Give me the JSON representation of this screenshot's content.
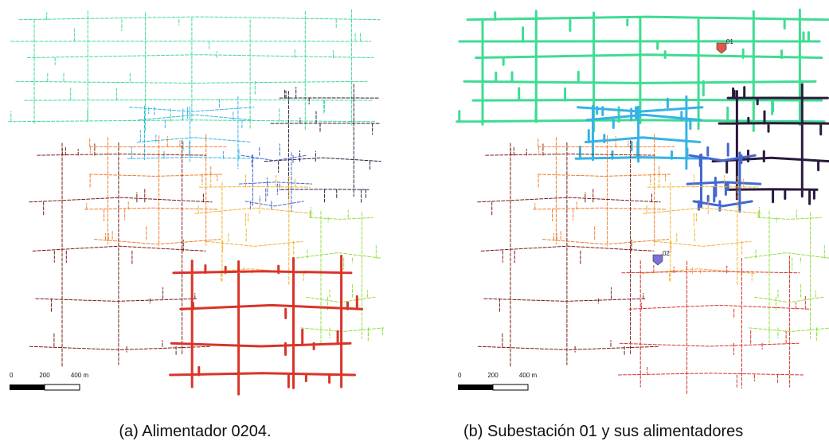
{
  "panels": [
    {
      "caption": "(a) Alimentador 0204.",
      "scale": {
        "ticks": [
          "0",
          "200",
          "400 m"
        ]
      }
    },
    {
      "caption": "(b) Subestación 01 y sus alimentadores",
      "scale": {
        "ticks": [
          "0",
          "200",
          "400 m"
        ]
      },
      "substations": [
        "01",
        "02"
      ]
    }
  ]
}
